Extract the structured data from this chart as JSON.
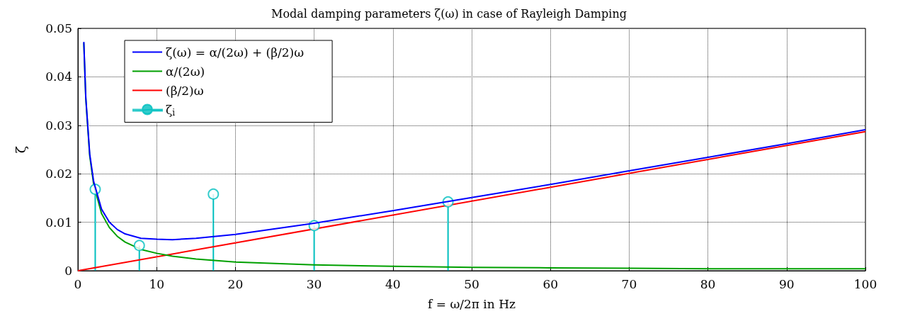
{
  "chart_data": {
    "type": "line",
    "title": "Modal damping parameters ζ(ω) in case of Rayleigh Damping",
    "xlabel": "f = ω/2π in Hz",
    "ylabel": "ζ",
    "xlim": [
      0,
      100
    ],
    "xticks": [
      0,
      10,
      20,
      30,
      40,
      50,
      60,
      70,
      80,
      90,
      100
    ],
    "ylim": [
      0,
      0.05
    ],
    "yticks": [
      0,
      0.01,
      0.02,
      0.03,
      0.04,
      0.05
    ],
    "grid": true,
    "legend": "top left",
    "line_style": "solid",
    "marker": "none",
    "series": [
      {
        "name": "ζ(ω) = α/(2ω) + (β/2)ω",
        "color": "#0000ff",
        "x": [
          0.75,
          1,
          1.5,
          2,
          3,
          4,
          5,
          6,
          8,
          10,
          12,
          15,
          20,
          30,
          40,
          50,
          60,
          70,
          80,
          90,
          100
        ],
        "values": [
          0.0472,
          0.0358,
          0.0241,
          0.0184,
          0.0127,
          0.01,
          0.0085,
          0.0076,
          0.0067,
          0.0065,
          0.0064,
          0.0067,
          0.0075,
          0.0098,
          0.0124,
          0.0151,
          0.0178,
          0.0206,
          0.0234,
          0.0262,
          0.0291
        ]
      },
      {
        "name": "α/(2ω)",
        "color": "#00a000",
        "x": [
          0.75,
          1,
          1.5,
          2,
          3,
          4,
          5,
          6,
          8,
          10,
          12,
          15,
          20,
          30,
          40,
          50,
          60,
          70,
          80,
          90,
          100
        ],
        "values": [
          0.047,
          0.0355,
          0.0237,
          0.0178,
          0.0118,
          0.0089,
          0.0071,
          0.0059,
          0.0044,
          0.0036,
          0.003,
          0.0024,
          0.0018,
          0.0012,
          0.0009,
          0.0007,
          0.0006,
          0.0005,
          0.0004,
          0.0004,
          0.0004
        ]
      },
      {
        "name": "(β/2)ω",
        "color": "#ff0000",
        "x": [
          0,
          100
        ],
        "values": [
          0,
          0.0287
        ]
      },
      {
        "name": "ζ$_{i}$",
        "type": "lollipop",
        "color": "#00bfbf",
        "marker": "circle",
        "x": [
          2.2,
          7.8,
          17.2,
          30,
          47
        ],
        "values": [
          0.0168,
          0.0052,
          0.0158,
          0.0093,
          0.0142
        ]
      }
    ]
  }
}
